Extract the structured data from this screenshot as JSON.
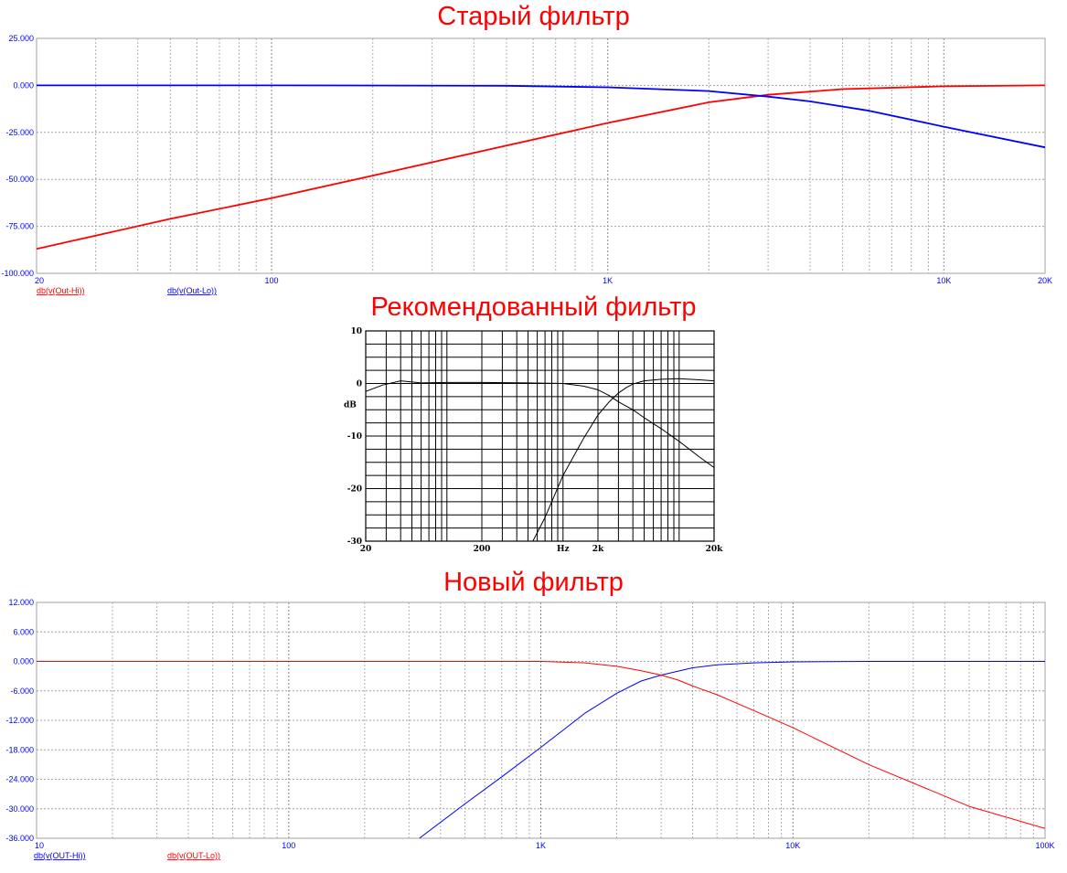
{
  "titles": {
    "old": "Старый фильтр",
    "recommended": "Рекомендованный фильтр",
    "new": "Новый фильтр"
  },
  "chart_data": [
    {
      "type": "line",
      "title": "Старый фильтр",
      "xscale": "log",
      "xlim": [
        20,
        20000
      ],
      "ylim": [
        -100,
        25
      ],
      "yticks": [
        25,
        0,
        -25,
        -50,
        -75,
        -100
      ],
      "ytick_labels": [
        "25.000",
        "0.000",
        "-25.000",
        "-50.000",
        "-75.000",
        "-100.000"
      ],
      "xticks": [
        20,
        100,
        1000,
        10000,
        20000
      ],
      "xtick_labels": [
        "20",
        "100",
        "1K",
        "10K",
        "20K"
      ],
      "grid": true,
      "legend": "bottom-left",
      "series": [
        {
          "name": "db(v(Out-Hi))",
          "color": "#ff0000",
          "x": [
            20,
            50,
            100,
            200,
            500,
            1000,
            2000,
            3000,
            5000,
            10000,
            20000
          ],
          "y": [
            -87,
            -71,
            -60,
            -48,
            -32,
            -20,
            -9,
            -5,
            -2,
            -0.5,
            0
          ]
        },
        {
          "name": "db(v(Out-Lo))",
          "color": "#0000ff",
          "x": [
            20,
            100,
            500,
            1000,
            2000,
            3000,
            4000,
            6000,
            10000,
            20000
          ],
          "y": [
            0,
            0,
            -0.2,
            -1,
            -3,
            -6,
            -8.5,
            -13.5,
            -22,
            -33
          ]
        }
      ]
    },
    {
      "type": "line",
      "title": "Рекомендованный фильтр",
      "xscale": "log",
      "xlim": [
        20,
        20000
      ],
      "ylim": [
        -30,
        10
      ],
      "ylabel": "dB",
      "xlabel": "Hz",
      "yticks": [
        10,
        0,
        -10,
        -20,
        -30
      ],
      "ytick_labels": [
        "10",
        "0",
        "-10",
        "-20",
        "-30"
      ],
      "xticks": [
        20,
        200,
        2000,
        20000
      ],
      "xtick_labels": [
        "20",
        "200",
        "2k",
        "20k"
      ],
      "grid": true,
      "series": [
        {
          "color": "#000000",
          "x": [
            20,
            28,
            40,
            60,
            100,
            200,
            500,
            1000,
            1500,
            2000,
            2500,
            3000,
            4000,
            5000,
            7000,
            10000,
            15000,
            20000
          ],
          "y": [
            -1.5,
            -0.3,
            0.5,
            0.1,
            0.2,
            0.2,
            0.1,
            0,
            -0.5,
            -1.2,
            -2.3,
            -3.5,
            -5,
            -6.5,
            -8.6,
            -11,
            -14,
            -16
          ]
        },
        {
          "color": "#000000",
          "x": [
            550,
            700,
            1000,
            1500,
            2000,
            2500,
            3000,
            3500,
            4000,
            5000,
            7000,
            10000,
            15000,
            20000
          ],
          "y": [
            -30,
            -25.5,
            -17.5,
            -10.5,
            -6,
            -3.5,
            -1.8,
            -0.8,
            -0.1,
            0.5,
            0.8,
            0.9,
            0.7,
            0.5
          ]
        }
      ]
    },
    {
      "type": "line",
      "title": "Новый фильтр",
      "xscale": "log",
      "xlim": [
        10,
        100000
      ],
      "ylim": [
        -36,
        12
      ],
      "yticks": [
        12,
        6,
        0,
        -6,
        -12,
        -18,
        -24,
        -30,
        -36
      ],
      "ytick_labels": [
        "12.000",
        "6.000",
        "0.000",
        "-6.000",
        "-12.000",
        "-18.000",
        "-24.000",
        "-30.000",
        "-36.000"
      ],
      "xticks": [
        10,
        100,
        1000,
        10000,
        100000
      ],
      "xtick_labels": [
        "10",
        "100",
        "1K",
        "10K",
        "100K"
      ],
      "grid": true,
      "legend": "bottom-left",
      "series": [
        {
          "name": "db(v(OUT-Hi))",
          "color": "#0000ff",
          "x": [
            330,
            500,
            700,
            1000,
            1500,
            2000,
            2500,
            3000,
            4000,
            5000,
            7000,
            10000,
            20000,
            100000
          ],
          "y": [
            -36,
            -29,
            -23.5,
            -17.5,
            -10.5,
            -6.5,
            -4,
            -2.8,
            -1.3,
            -0.7,
            -0.3,
            -0.1,
            0,
            0
          ]
        },
        {
          "name": "db(v(OUT-Lo))",
          "color": "#ff0000",
          "x": [
            10,
            100,
            1000,
            1500,
            2000,
            2500,
            3000,
            3500,
            4000,
            5000,
            7000,
            10000,
            20000,
            50000,
            100000
          ],
          "y": [
            0,
            0,
            0,
            -0.3,
            -1,
            -1.9,
            -2.8,
            -3.8,
            -5,
            -6.8,
            -10,
            -13.5,
            -21,
            -29.5,
            -34
          ]
        }
      ]
    }
  ]
}
